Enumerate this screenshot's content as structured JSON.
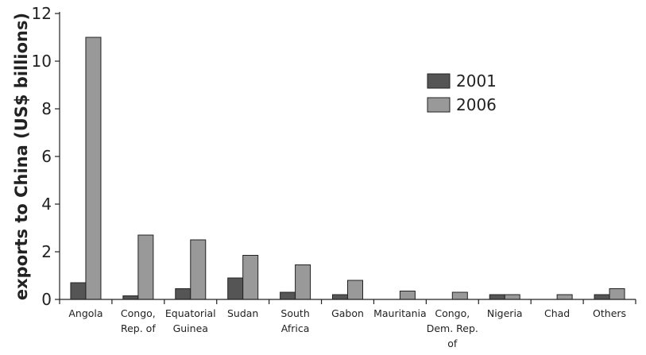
{
  "chart_data": {
    "type": "bar",
    "title": "",
    "xlabel": "",
    "ylabel": "exports to China (US$ billions)",
    "ylim": [
      0,
      12
    ],
    "yticks": [
      0,
      2,
      4,
      6,
      8,
      10,
      12
    ],
    "grid": false,
    "legend_position": "top-right",
    "categories": [
      [
        "Angola"
      ],
      [
        "Congo,",
        "Rep. of"
      ],
      [
        "Equatorial",
        "Guinea"
      ],
      [
        "Sudan"
      ],
      [
        "South",
        "Africa"
      ],
      [
        "Gabon"
      ],
      [
        "Mauritania"
      ],
      [
        "Congo,",
        "Dem. Rep.",
        "of"
      ],
      [
        "Nigeria"
      ],
      [
        "Chad"
      ],
      [
        "Others"
      ]
    ],
    "series": [
      {
        "name": "2001",
        "color": "#555555",
        "values": [
          0.7,
          0.15,
          0.45,
          0.9,
          0.3,
          0.2,
          0,
          0,
          0.2,
          0,
          0.2
        ]
      },
      {
        "name": "2006",
        "color": "#999999",
        "values": [
          11.0,
          2.7,
          2.5,
          1.85,
          1.45,
          0.8,
          0.35,
          0.3,
          0.2,
          0.2,
          0.45
        ]
      }
    ]
  }
}
